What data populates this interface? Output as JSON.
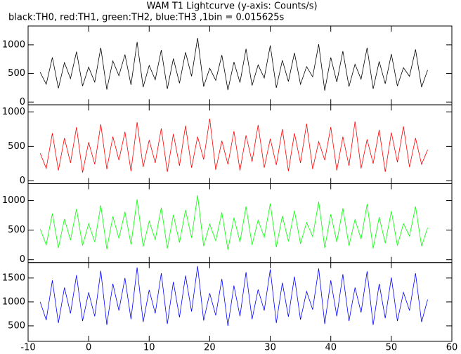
{
  "chart_data": [
    {
      "type": "line",
      "title": "WAM T1 Lightcurve (y-axis: Counts/s)",
      "subtitle": "black:TH0, red:TH1, green:TH2, blue:TH3 ,1bin = 0.015625s",
      "xlim": [
        -10,
        60
      ],
      "ylim": [
        -49,
        1330
      ],
      "yticks": [
        0,
        500,
        1000
      ],
      "x": [
        -8,
        -7,
        -6,
        -5,
        -4,
        -3,
        -2,
        -1,
        0,
        1,
        2,
        3,
        4,
        5,
        6,
        7,
        8,
        9,
        10,
        11,
        12,
        13,
        14,
        15,
        16,
        17,
        18,
        19,
        20,
        21,
        22,
        23,
        24,
        25,
        26,
        27,
        28,
        29,
        30,
        31,
        32,
        33,
        34,
        35,
        36,
        37,
        38,
        39,
        40,
        41,
        42,
        43,
        44,
        45,
        46,
        47,
        48,
        49,
        50,
        51,
        52,
        53,
        54,
        55,
        56
      ],
      "series": [
        {
          "color": "#000000",
          "values": [
            520,
            310,
            780,
            240,
            690,
            410,
            880,
            280,
            610,
            350,
            950,
            220,
            720,
            460,
            830,
            300,
            1050,
            260,
            640,
            390,
            910,
            230,
            760,
            330,
            870,
            450,
            1120,
            270,
            590,
            380,
            820,
            210,
            700,
            340,
            930,
            290,
            650,
            420,
            990,
            250,
            730,
            360,
            860,
            310,
            620,
            440,
            1010,
            200,
            780,
            350,
            890,
            270,
            660,
            400,
            950,
            230,
            710,
            320,
            840,
            280,
            600,
            450,
            920,
            260,
            560
          ]
        }
      ]
    },
    {
      "type": "line",
      "xlim": [
        -10,
        60
      ],
      "ylim": [
        -41,
        1102
      ],
      "yticks": [
        0,
        500,
        1000
      ],
      "x": [
        -8,
        -7,
        -6,
        -5,
        -4,
        -3,
        -2,
        -1,
        0,
        1,
        2,
        3,
        4,
        5,
        6,
        7,
        8,
        9,
        10,
        11,
        12,
        13,
        14,
        15,
        16,
        17,
        18,
        19,
        20,
        21,
        22,
        23,
        24,
        25,
        26,
        27,
        28,
        29,
        30,
        31,
        32,
        33,
        34,
        35,
        36,
        37,
        38,
        39,
        40,
        41,
        42,
        43,
        44,
        45,
        46,
        47,
        48,
        49,
        50,
        51,
        52,
        53,
        54,
        55,
        56
      ],
      "series": [
        {
          "color": "#ff0000",
          "values": [
            400,
            180,
            690,
            150,
            620,
            260,
            780,
            120,
            560,
            240,
            820,
            170,
            640,
            300,
            710,
            140,
            850,
            200,
            590,
            260,
            760,
            130,
            680,
            220,
            800,
            190,
            640,
            310,
            900,
            160,
            580,
            240,
            720,
            150,
            660,
            280,
            810,
            190,
            610,
            230,
            750,
            140,
            690,
            260,
            830,
            170,
            570,
            300,
            780,
            150,
            640,
            220,
            860,
            180,
            600,
            250,
            740,
            130,
            700,
            270,
            790,
            200,
            620,
            240,
            450
          ]
        }
      ]
    },
    {
      "type": "line",
      "xlim": [
        -10,
        60
      ],
      "ylim": [
        -48,
        1286
      ],
      "yticks": [
        0,
        500,
        1000
      ],
      "x": [
        -8,
        -7,
        -6,
        -5,
        -4,
        -3,
        -2,
        -1,
        0,
        1,
        2,
        3,
        4,
        5,
        6,
        7,
        8,
        9,
        10,
        11,
        12,
        13,
        14,
        15,
        16,
        17,
        18,
        19,
        20,
        21,
        22,
        23,
        24,
        25,
        26,
        27,
        28,
        29,
        30,
        31,
        32,
        33,
        34,
        35,
        36,
        37,
        38,
        39,
        40,
        41,
        42,
        43,
        44,
        45,
        46,
        47,
        48,
        49,
        50,
        51,
        52,
        53,
        54,
        55,
        56
      ],
      "series": [
        {
          "color": "#00ff00",
          "values": [
            520,
            250,
            780,
            200,
            690,
            330,
            860,
            240,
            610,
            300,
            920,
            180,
            730,
            360,
            810,
            260,
            1020,
            220,
            650,
            340,
            880,
            190,
            760,
            290,
            840,
            370,
            1090,
            230,
            600,
            320,
            800,
            170,
            710,
            300,
            900,
            250,
            670,
            380,
            950,
            210,
            740,
            310,
            830,
            270,
            630,
            390,
            980,
            200,
            770,
            300,
            870,
            240,
            680,
            350,
            940,
            190,
            720,
            280,
            820,
            240,
            610,
            400,
            900,
            230,
            540
          ]
        }
      ]
    },
    {
      "type": "line",
      "xlim": [
        -10,
        60
      ],
      "xticks": [
        -10,
        0,
        10,
        20,
        30,
        40,
        50,
        60
      ],
      "ylim": [
        176,
        1824
      ],
      "yticks": [
        500,
        1000,
        1500
      ],
      "x": [
        -8,
        -7,
        -6,
        -5,
        -4,
        -3,
        -2,
        -1,
        0,
        1,
        2,
        3,
        4,
        5,
        6,
        7,
        8,
        9,
        10,
        11,
        12,
        13,
        14,
        15,
        16,
        17,
        18,
        19,
        20,
        21,
        22,
        23,
        24,
        25,
        26,
        27,
        28,
        29,
        30,
        31,
        32,
        33,
        34,
        35,
        36,
        37,
        38,
        39,
        40,
        41,
        42,
        43,
        44,
        45,
        46,
        47,
        48,
        49,
        50,
        51,
        52,
        53,
        54,
        55,
        56
      ],
      "series": [
        {
          "color": "#0000ff",
          "values": [
            1000,
            620,
            1450,
            560,
            1300,
            760,
            1560,
            600,
            1200,
            700,
            1650,
            520,
            1380,
            820,
            1500,
            640,
            1720,
            580,
            1250,
            760,
            1600,
            540,
            1420,
            680,
            1550,
            800,
            1750,
            610,
            1180,
            720,
            1480,
            500,
            1340,
            700,
            1620,
            640,
            1260,
            820,
            1680,
            560,
            1400,
            690,
            1530,
            630,
            1220,
            840,
            1700,
            540,
            1450,
            700,
            1580,
            600,
            1300,
            780,
            1640,
            520,
            1380,
            660,
            1510,
            600,
            1200,
            820,
            1600,
            580,
            1050
          ]
        }
      ]
    }
  ]
}
